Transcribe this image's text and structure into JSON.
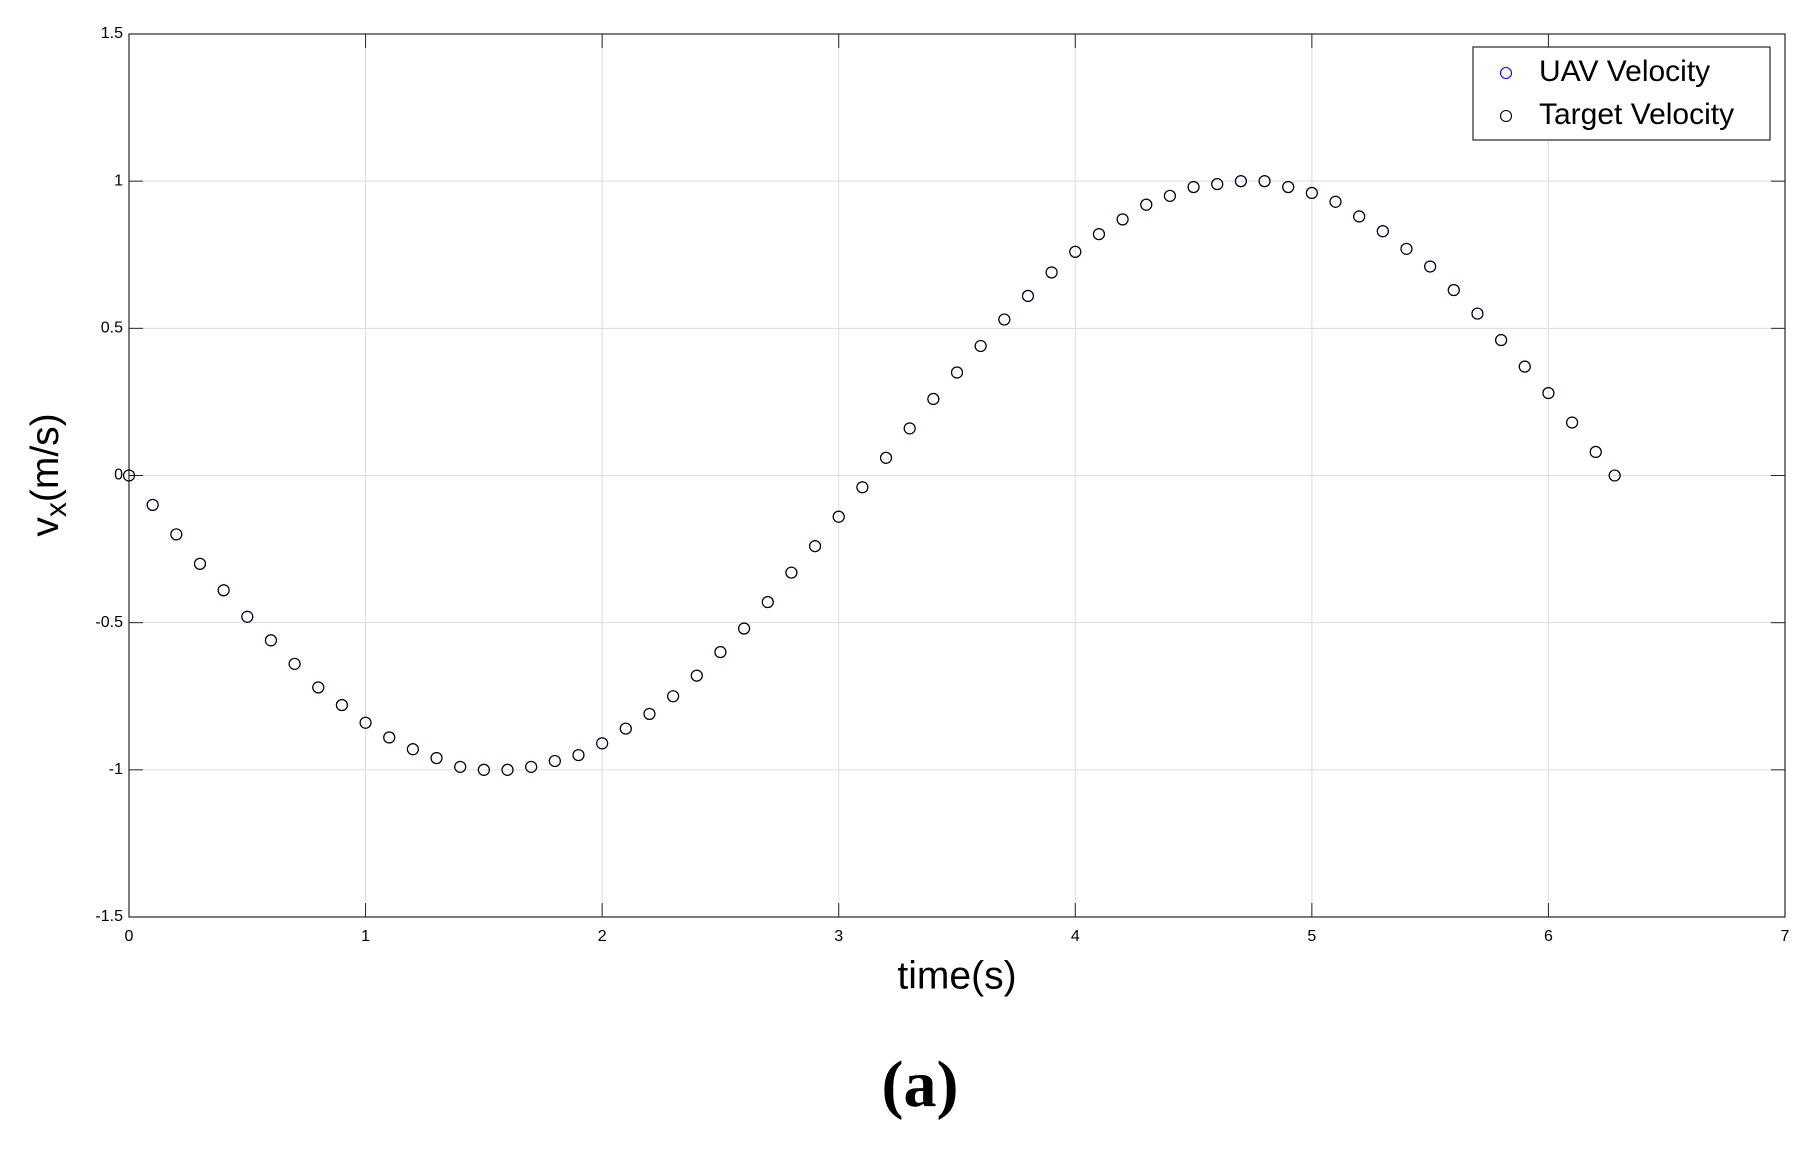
{
  "chart_data": {
    "type": "scatter",
    "xlabel": "time(s)",
    "ylabel": {
      "base": "v",
      "sub": "x",
      "rest": "(m/s)"
    },
    "caption": "(a)",
    "x": [
      0,
      0.1,
      0.2,
      0.3,
      0.4,
      0.5,
      0.6,
      0.7,
      0.8,
      0.9,
      1,
      1.1,
      1.2,
      1.3,
      1.4,
      1.5,
      1.6,
      1.7,
      1.8,
      1.9,
      2,
      2.1,
      2.2,
      2.3,
      2.4,
      2.5,
      2.6,
      2.7,
      2.8,
      2.9,
      3,
      3.1,
      3.2,
      3.3,
      3.4,
      3.5,
      3.6,
      3.7,
      3.8,
      3.9,
      4,
      4.1,
      4.2,
      4.3,
      4.4,
      4.5,
      4.6,
      4.7,
      4.8,
      4.9,
      5,
      5.1,
      5.2,
      5.3,
      5.4,
      5.5,
      5.6,
      5.7,
      5.8,
      5.9,
      6,
      6.1,
      6.2,
      6.28
    ],
    "series": [
      {
        "name": "UAV Velocity",
        "color": "#0000ff",
        "values": [
          0,
          -0.1,
          -0.2,
          -0.3,
          -0.39,
          -0.48,
          -0.56,
          -0.64,
          -0.72,
          -0.78,
          -0.84,
          -0.89,
          -0.93,
          -0.96,
          -0.99,
          -1,
          -1,
          -0.99,
          -0.97,
          -0.95,
          -0.91,
          -0.86,
          -0.81,
          -0.75,
          -0.68,
          -0.6,
          -0.52,
          -0.43,
          -0.33,
          -0.24,
          -0.14,
          -0.04,
          0.06,
          0.16,
          0.26,
          0.35,
          0.44,
          0.53,
          0.61,
          0.69,
          0.76,
          0.82,
          0.87,
          0.92,
          0.95,
          0.98,
          0.99,
          1,
          1,
          0.98,
          0.96,
          0.93,
          0.88,
          0.83,
          0.77,
          0.71,
          0.63,
          0.55,
          0.46,
          0.37,
          0.28,
          0.18,
          0.08,
          0
        ]
      },
      {
        "name": "Target Velocity",
        "color": "#000000",
        "values": [
          0,
          -0.1,
          -0.2,
          -0.3,
          -0.39,
          -0.48,
          -0.56,
          -0.64,
          -0.72,
          -0.78,
          -0.84,
          -0.89,
          -0.93,
          -0.96,
          -0.99,
          -1,
          -1,
          -0.99,
          -0.97,
          -0.95,
          -0.91,
          -0.86,
          -0.81,
          -0.75,
          -0.68,
          -0.6,
          -0.52,
          -0.43,
          -0.33,
          -0.24,
          -0.14,
          -0.04,
          0.06,
          0.16,
          0.26,
          0.35,
          0.44,
          0.53,
          0.61,
          0.69,
          0.76,
          0.82,
          0.87,
          0.92,
          0.95,
          0.98,
          0.99,
          1,
          1,
          0.98,
          0.96,
          0.93,
          0.88,
          0.83,
          0.77,
          0.71,
          0.63,
          0.55,
          0.46,
          0.37,
          0.28,
          0.18,
          0.08,
          0
        ]
      }
    ],
    "xlim": [
      0,
      7
    ],
    "xticks": [
      0,
      1,
      2,
      3,
      4,
      5,
      6,
      7
    ],
    "ylim": [
      -1.5,
      1.5
    ],
    "yticks": [
      -1.5,
      -1,
      -0.5,
      0,
      0.5,
      1,
      1.5
    ],
    "grid": true,
    "legend": "top-right"
  }
}
